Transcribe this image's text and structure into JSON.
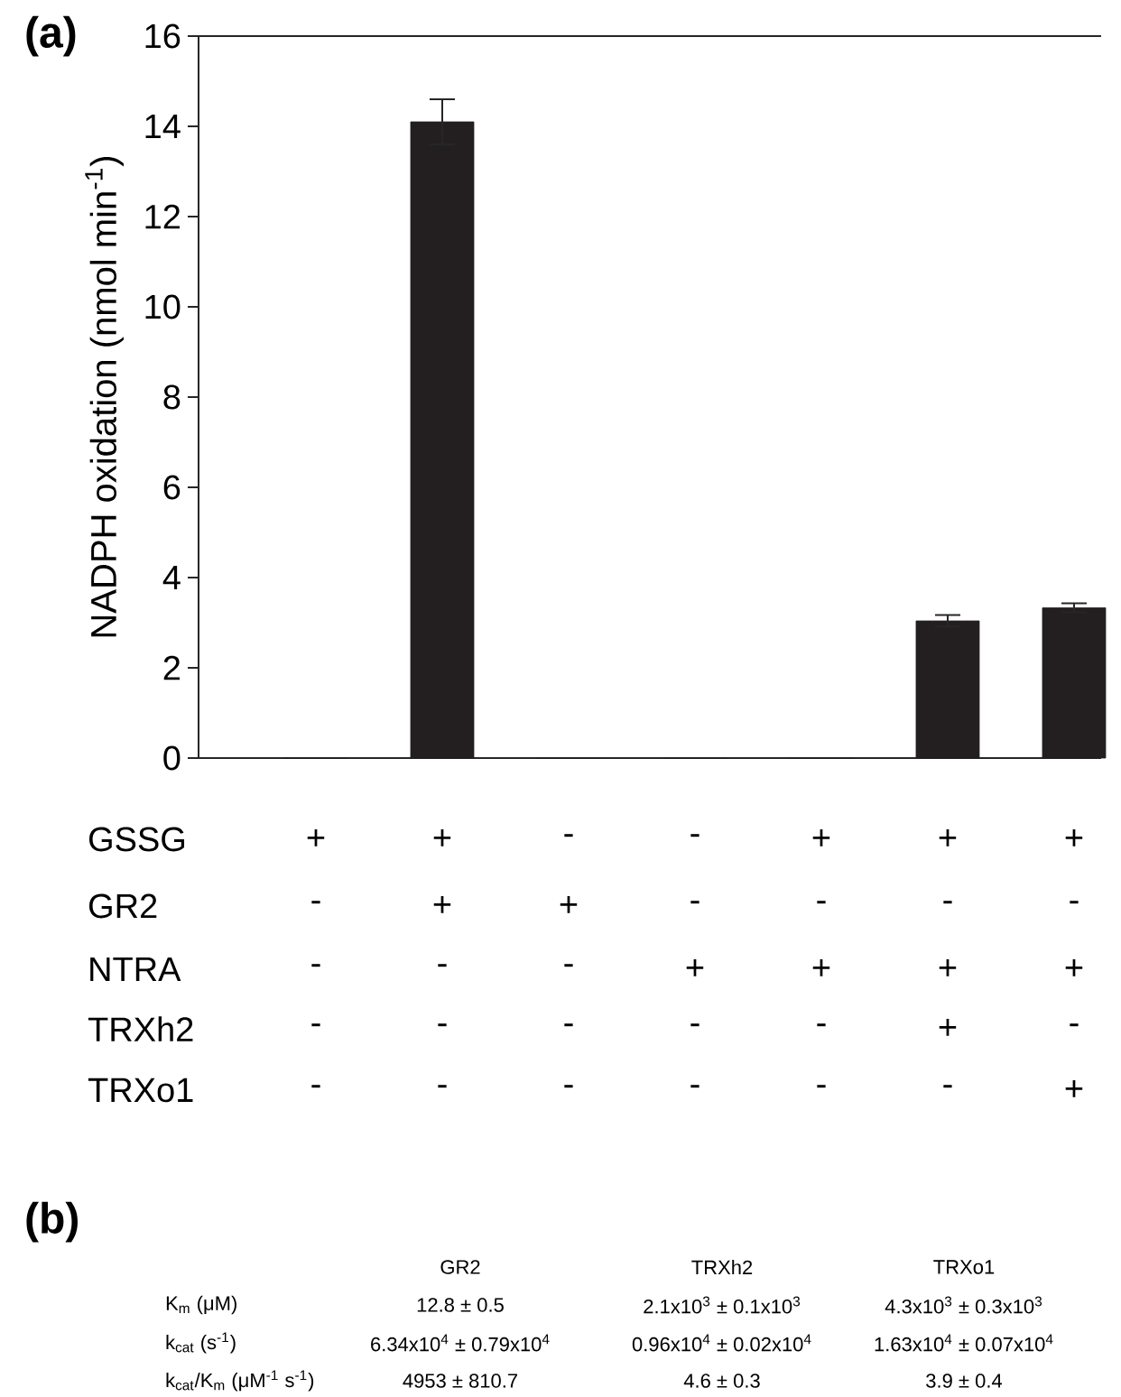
{
  "chart_data": [
    {
      "type": "bar",
      "title": "(a)",
      "ylabel": "NADPH oxidation (nmol min$^{-1}$)",
      "categories": [
        null,
        null,
        null,
        null,
        null,
        null,
        null
      ],
      "values": [
        0,
        14.1,
        0,
        0,
        0,
        3.04,
        3.33
      ],
      "errors": [
        null,
        0.5,
        null,
        null,
        null,
        0.13,
        0.1
      ],
      "color": "#231f20",
      "ylim": [
        0,
        16
      ],
      "yticks": [
        0,
        2,
        4,
        6,
        8,
        10,
        12,
        14,
        16
      ],
      "annotations": [
        "GSSG",
        "+",
        "+",
        "-",
        "-",
        "+",
        "+",
        "+",
        "GR2",
        "-",
        "+",
        "+",
        "-",
        "-",
        "-",
        "-",
        "NTRA",
        "-",
        "-",
        "-",
        "+",
        "+",
        "+",
        "+",
        "TRXh2",
        "-",
        "-",
        "-",
        "-",
        "-",
        "+",
        "-",
        "TRXo1",
        "-",
        "-",
        "-",
        "-",
        "-",
        "-",
        "+"
      ]
    },
    {
      "type": "other",
      "title": "(b)",
      "annotations": [
        "GR2",
        "TRXh2",
        "TRXo1",
        "K$_{m}$ (μM)",
        "12.8 ± 0.5",
        "2.1x10$^{3}$ ± 0.1x10$^{3}$",
        "4.3x10$^{3}$ ± 0.3x10$^{3}$",
        "k$_{cat}$ (s$^{-1}$)",
        "6.34x10$^{4}$ ± 0.79x10$^{4}$",
        "0.96x10$^{4}$ ± 0.02x10$^{4}$",
        "1.63x10$^{4}$ ± 0.07x10$^{4}$",
        "k$_{cat}$/K$_{m}$ (μM$^{-1}$ s$^{-1}$)",
        "4953 ± 810.7",
        "4.6 ± 0.3",
        "3.9 ± 0.4"
      ]
    }
  ]
}
